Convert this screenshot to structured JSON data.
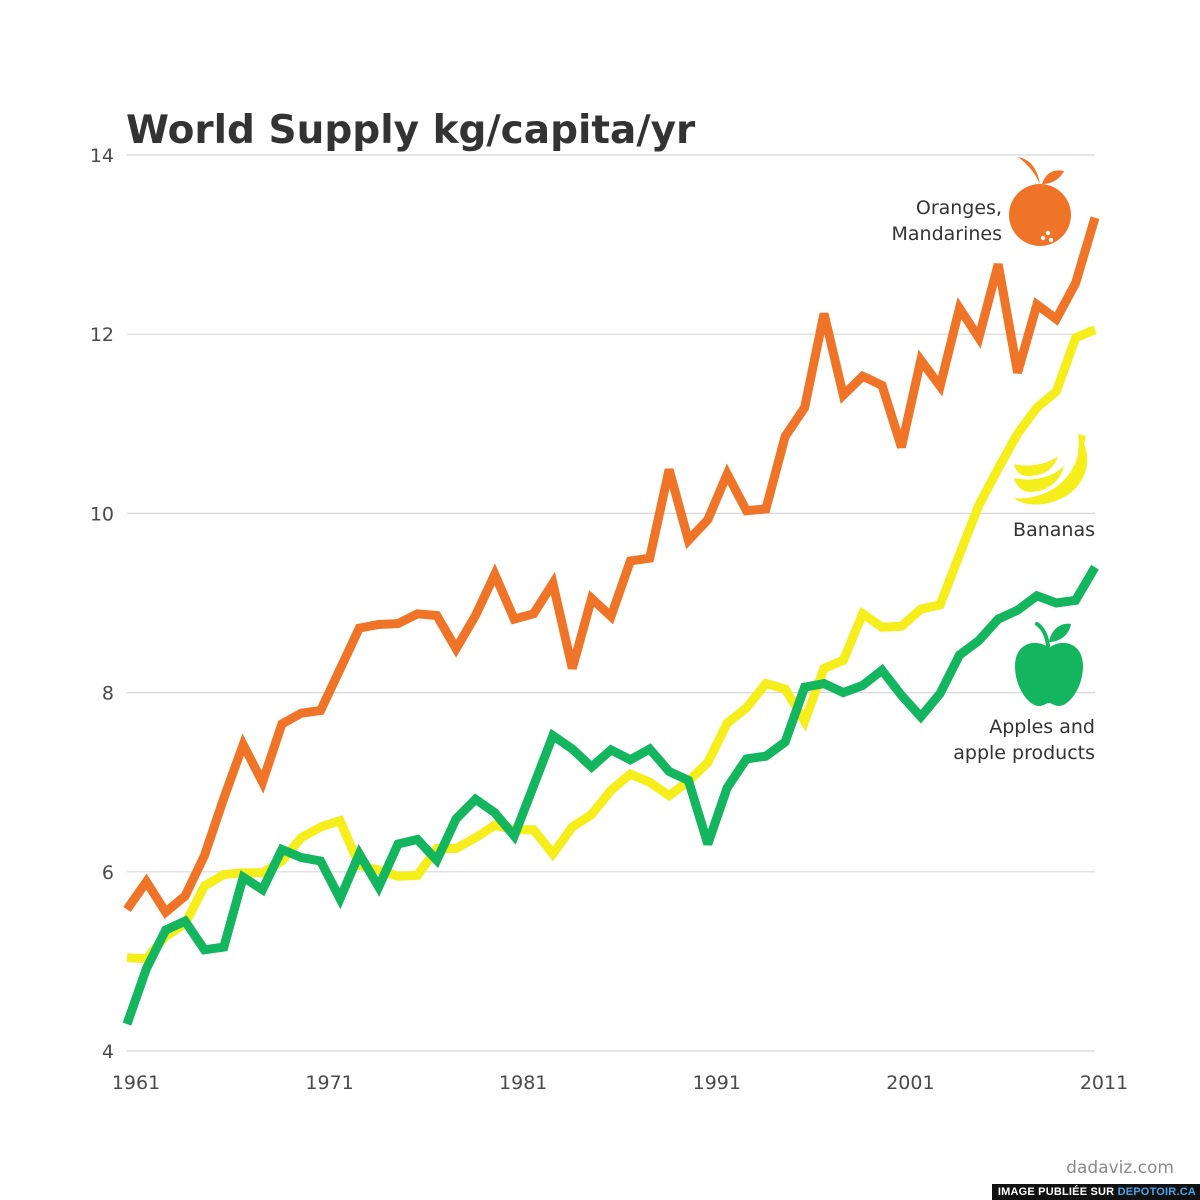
{
  "chart_data": {
    "type": "line",
    "title": "World Supply kg/capita/yr",
    "xlabel": "",
    "ylabel": "",
    "xlim": [
      1961,
      2011
    ],
    "ylim": [
      4,
      14
    ],
    "x_ticks": [
      "1961",
      "1971",
      "1981",
      "1991",
      "2001",
      "2011"
    ],
    "y_ticks": [
      "4",
      "6",
      "8",
      "10",
      "12",
      "14"
    ],
    "grid": true,
    "x": [
      1961,
      1962,
      1963,
      1964,
      1965,
      1966,
      1967,
      1968,
      1969,
      1970,
      1971,
      1972,
      1973,
      1974,
      1975,
      1976,
      1977,
      1978,
      1979,
      1980,
      1981,
      1982,
      1983,
      1984,
      1985,
      1986,
      1987,
      1988,
      1989,
      1990,
      1991,
      1992,
      1993,
      1994,
      1995,
      1996,
      1997,
      1998,
      1999,
      2000,
      2001,
      2002,
      2003,
      2004,
      2005,
      2006,
      2007,
      2008,
      2009,
      2010,
      2011
    ],
    "series": [
      {
        "name": "Oranges, Mandarines",
        "label_lines": [
          "Oranges,",
          "Mandarines"
        ],
        "color": "#f07427",
        "icon": "orange-icon",
        "values": [
          5.58,
          5.89,
          5.55,
          5.73,
          6.18,
          6.82,
          7.42,
          7.0,
          7.65,
          7.77,
          7.8,
          8.26,
          8.72,
          8.76,
          8.77,
          8.88,
          8.86,
          8.49,
          8.86,
          9.32,
          8.82,
          8.88,
          9.22,
          8.27,
          9.05,
          8.85,
          9.47,
          9.5,
          10.49,
          9.7,
          9.93,
          10.44,
          10.03,
          10.05,
          10.86,
          11.18,
          12.23,
          11.32,
          11.53,
          11.43,
          10.74,
          11.71,
          11.42,
          12.29,
          11.96,
          12.78,
          11.57,
          12.33,
          12.17,
          12.57,
          13.3
        ]
      },
      {
        "name": "Bananas",
        "label_lines": [
          "Bananas"
        ],
        "color": "#f6ee1a",
        "icon": "banana-icon",
        "values": [
          5.04,
          5.03,
          5.28,
          5.42,
          5.84,
          5.97,
          5.99,
          5.99,
          6.12,
          6.38,
          6.5,
          6.57,
          6.07,
          6.02,
          5.95,
          5.96,
          6.26,
          6.26,
          6.38,
          6.52,
          6.47,
          6.47,
          6.2,
          6.5,
          6.64,
          6.91,
          7.09,
          7.0,
          6.85,
          7.01,
          7.22,
          7.66,
          7.83,
          8.1,
          8.04,
          7.68,
          8.27,
          8.36,
          8.88,
          8.73,
          8.74,
          8.93,
          8.98,
          9.54,
          10.09,
          10.5,
          10.89,
          11.18,
          11.36,
          11.96,
          12.05
        ]
      },
      {
        "name": "Apples and apple products",
        "label_lines": [
          "Apples and",
          "apple products"
        ],
        "color": "#13b55e",
        "icon": "apple-icon",
        "values": [
          4.3,
          4.92,
          5.35,
          5.45,
          5.13,
          5.16,
          5.94,
          5.8,
          6.25,
          6.16,
          6.12,
          5.7,
          6.2,
          5.83,
          6.31,
          6.36,
          6.13,
          6.59,
          6.81,
          6.66,
          6.4,
          6.96,
          7.52,
          7.37,
          7.17,
          7.36,
          7.25,
          7.37,
          7.12,
          7.02,
          6.31,
          6.94,
          7.26,
          7.29,
          7.45,
          8.06,
          8.1,
          8.0,
          8.08,
          8.25,
          7.97,
          7.73,
          7.99,
          8.42,
          8.58,
          8.82,
          8.92,
          9.08,
          9.0,
          9.03,
          9.4
        ]
      }
    ]
  },
  "footer": {
    "credit": "dadaviz.com",
    "stamp_text": "IMAGE PUBLIÉE SUR ",
    "stamp_site": "DEPOTOIR.CA"
  }
}
